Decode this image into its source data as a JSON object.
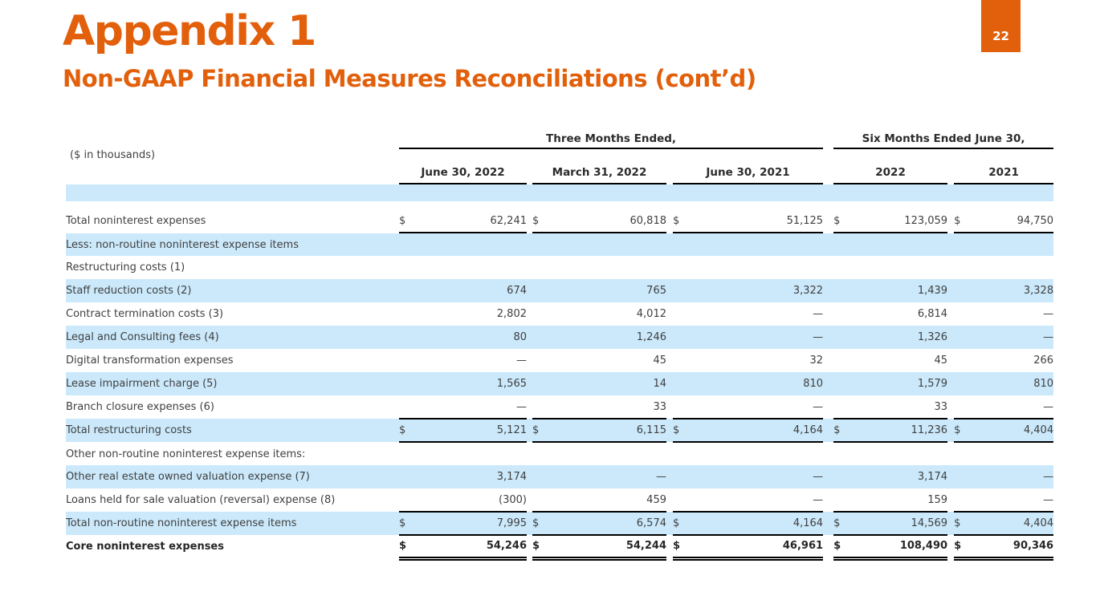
{
  "page": {
    "number": "22"
  },
  "title": "Appendix 1",
  "subtitle": "Non-GAAP Financial Measures Reconciliations (cont’d)",
  "colors": {
    "accent_orange": "#e2600c",
    "row_shade_blue": "#cbe9fb",
    "text": "#3f3f3f",
    "rule": "#000000"
  },
  "table": {
    "units_note": "($ in thousands)",
    "currency_symbol": "$",
    "group_headers": [
      {
        "label": "Three Months Ended,"
      },
      {
        "label": "Six Months Ended June 30,"
      }
    ],
    "column_headers": [
      "June 30, 2022",
      "March 31, 2022",
      "June 30, 2021",
      "2022",
      "2021"
    ],
    "rows": [
      {
        "label": "",
        "indent": 0,
        "bold": false,
        "shaded": true,
        "dollar": false,
        "values": null,
        "rule": "none"
      },
      {
        "label": "",
        "indent": 0,
        "bold": false,
        "shaded": false,
        "dollar": false,
        "values": null,
        "rule": "none"
      },
      {
        "label": "Total noninterest expenses",
        "indent": 0,
        "bold": false,
        "shaded": false,
        "dollar": true,
        "values": [
          "62,241",
          "60,818",
          "51,125",
          "123,059",
          "94,750"
        ],
        "rule": "single"
      },
      {
        "label": "Less: non-routine noninterest expense items",
        "indent": 1,
        "bold": false,
        "shaded": true,
        "dollar": false,
        "values": null,
        "rule": "none"
      },
      {
        "label": "Restructuring costs (1)",
        "indent": 3,
        "bold": false,
        "shaded": false,
        "dollar": false,
        "values": null,
        "rule": "none"
      },
      {
        "label": "Staff reduction costs (2)",
        "indent": 3,
        "bold": false,
        "shaded": true,
        "dollar": false,
        "values": [
          "674",
          "765",
          "3,322",
          "1,439",
          "3,328"
        ],
        "rule": "none"
      },
      {
        "label": "Contract termination costs (3)",
        "indent": 3,
        "bold": false,
        "shaded": false,
        "dollar": false,
        "values": [
          "2,802",
          "4,012",
          "—",
          "6,814",
          "—"
        ],
        "rule": "none"
      },
      {
        "label": "Legal and Consulting fees (4)",
        "indent": 3,
        "bold": false,
        "shaded": true,
        "dollar": false,
        "values": [
          "80",
          "1,246",
          "—",
          "1,326",
          "—"
        ],
        "rule": "none"
      },
      {
        "label": "Digital transformation expenses",
        "indent": 3,
        "bold": false,
        "shaded": false,
        "dollar": false,
        "values": [
          "—",
          "45",
          "32",
          "45",
          "266"
        ],
        "rule": "none"
      },
      {
        "label": "Lease impairment charge (5)",
        "indent": 3,
        "bold": false,
        "shaded": true,
        "dollar": false,
        "values": [
          "1,565",
          "14",
          "810",
          "1,579",
          "810"
        ],
        "rule": "none"
      },
      {
        "label": "Branch closure expenses (6)",
        "indent": 3,
        "bold": false,
        "shaded": false,
        "dollar": false,
        "values": [
          "—",
          "33",
          "—",
          "33",
          "—"
        ],
        "rule": "single"
      },
      {
        "label": "Total restructuring costs",
        "indent": 4,
        "bold": false,
        "shaded": true,
        "dollar": true,
        "values": [
          "5,121",
          "6,115",
          "4,164",
          "11,236",
          "4,404"
        ],
        "rule": "single"
      },
      {
        "label": "Other non-routine noninterest expense items:",
        "indent": 1,
        "bold": false,
        "shaded": false,
        "dollar": false,
        "values": null,
        "rule": "none"
      },
      {
        "label": "Other real estate owned valuation expense (7)",
        "indent": 2,
        "bold": false,
        "shaded": true,
        "dollar": false,
        "values": [
          "3,174",
          "—",
          "—",
          "3,174",
          "—"
        ],
        "rule": "none"
      },
      {
        "label": "Loans held for sale valuation (reversal) expense (8)",
        "indent": 2,
        "bold": false,
        "shaded": false,
        "dollar": false,
        "values": [
          "(300)",
          "459",
          "—",
          "159",
          "—"
        ],
        "rule": "single"
      },
      {
        "label": "Total non-routine noninterest expense items",
        "indent": 3,
        "bold": false,
        "shaded": true,
        "dollar": true,
        "values": [
          "7,995",
          "6,574",
          "4,164",
          "14,569",
          "4,404"
        ],
        "rule": "single"
      },
      {
        "label": "Core noninterest expenses",
        "indent": 0,
        "bold": true,
        "shaded": false,
        "dollar": true,
        "values": [
          "54,246",
          "54,244",
          "46,961",
          "108,490",
          "90,346"
        ],
        "rule": "double"
      }
    ]
  }
}
